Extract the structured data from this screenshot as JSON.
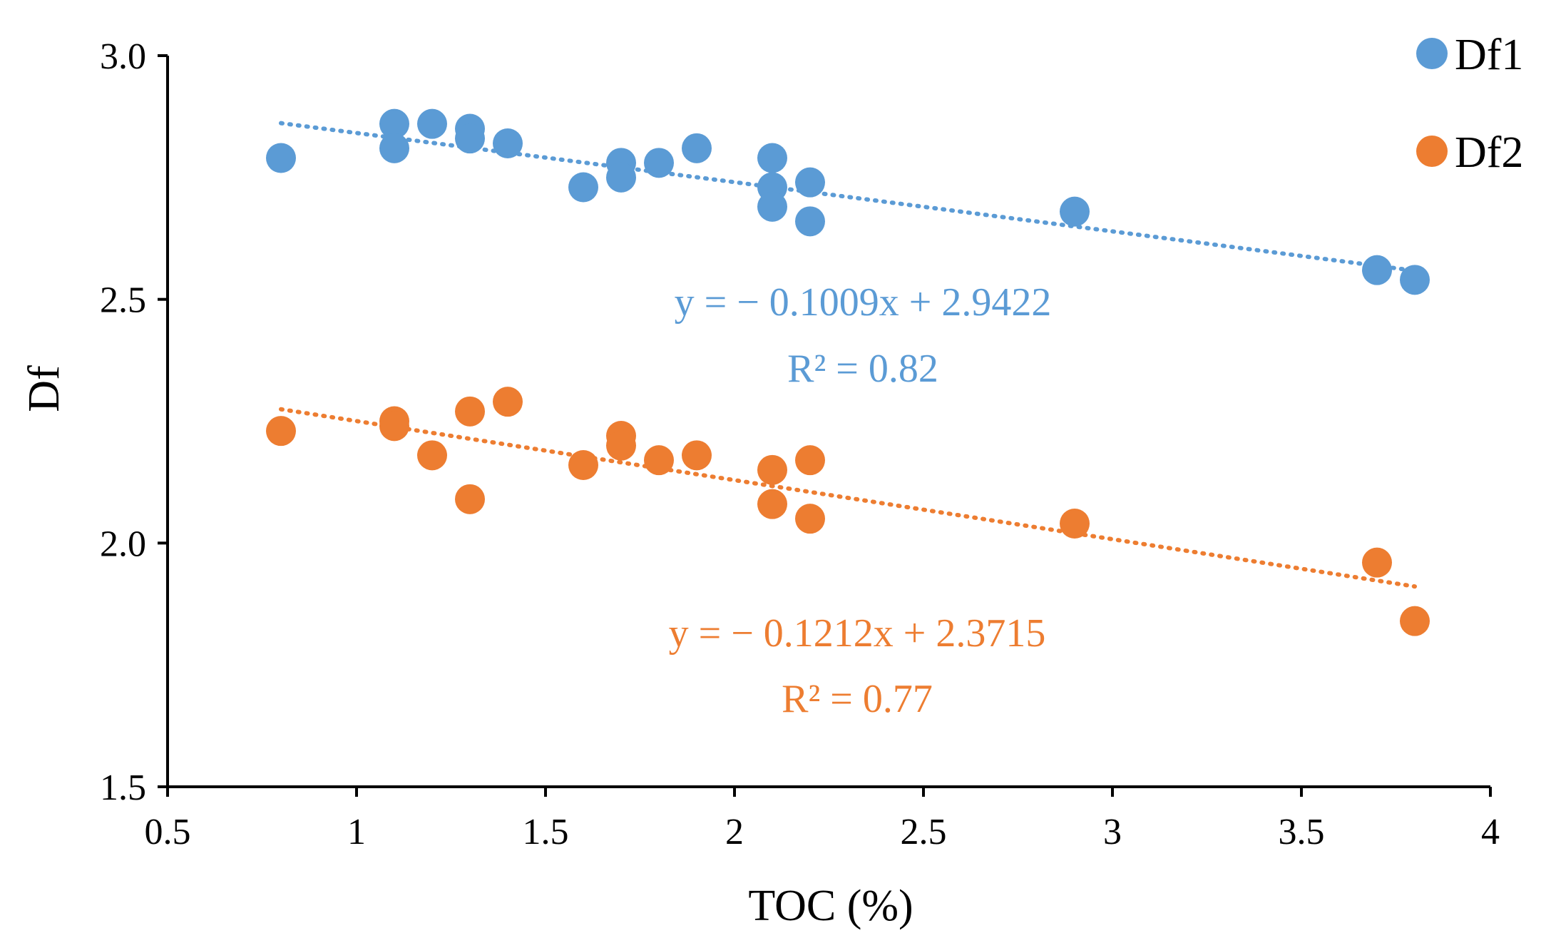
{
  "chart_data": {
    "type": "scatter",
    "title": "",
    "xlabel": "TOC (%)",
    "ylabel": "Df",
    "xlim": [
      0.5,
      4
    ],
    "ylim": [
      1.5,
      3.0
    ],
    "x_ticks": [
      "0.5",
      "1",
      "1.5",
      "2",
      "2.5",
      "3",
      "3.5",
      "4"
    ],
    "y_ticks": [
      "1.5",
      "2.0",
      "2.5",
      "3.0"
    ],
    "grid": false,
    "legend_position": "top-right",
    "series": [
      {
        "name": "Df1",
        "color": "#5B9BD5",
        "points": [
          {
            "x": 0.8,
            "y": 2.79
          },
          {
            "x": 1.1,
            "y": 2.86
          },
          {
            "x": 1.1,
            "y": 2.81
          },
          {
            "x": 1.2,
            "y": 2.86
          },
          {
            "x": 1.3,
            "y": 2.85
          },
          {
            "x": 1.3,
            "y": 2.83
          },
          {
            "x": 1.4,
            "y": 2.82
          },
          {
            "x": 1.6,
            "y": 2.73
          },
          {
            "x": 1.7,
            "y": 2.78
          },
          {
            "x": 1.7,
            "y": 2.75
          },
          {
            "x": 1.8,
            "y": 2.78
          },
          {
            "x": 1.9,
            "y": 2.81
          },
          {
            "x": 2.1,
            "y": 2.79
          },
          {
            "x": 2.1,
            "y": 2.73
          },
          {
            "x": 2.1,
            "y": 2.69
          },
          {
            "x": 2.2,
            "y": 2.74
          },
          {
            "x": 2.2,
            "y": 2.66
          },
          {
            "x": 2.9,
            "y": 2.68
          },
          {
            "x": 3.7,
            "y": 2.56
          },
          {
            "x": 3.8,
            "y": 2.54
          }
        ],
        "trendline": {
          "slope": -0.1009,
          "intercept": 2.9422,
          "x_range": [
            0.8,
            3.8
          ]
        },
        "equation": "y = − 0.1009x + 2.9422",
        "r_squared": "R² = 0.82"
      },
      {
        "name": "Df2",
        "color": "#ED7D31",
        "points": [
          {
            "x": 0.8,
            "y": 2.23
          },
          {
            "x": 1.1,
            "y": 2.25
          },
          {
            "x": 1.1,
            "y": 2.24
          },
          {
            "x": 1.2,
            "y": 2.18
          },
          {
            "x": 1.3,
            "y": 2.27
          },
          {
            "x": 1.3,
            "y": 2.09
          },
          {
            "x": 1.4,
            "y": 2.29
          },
          {
            "x": 1.6,
            "y": 2.16
          },
          {
            "x": 1.7,
            "y": 2.22
          },
          {
            "x": 1.7,
            "y": 2.2
          },
          {
            "x": 1.8,
            "y": 2.17
          },
          {
            "x": 1.9,
            "y": 2.18
          },
          {
            "x": 2.1,
            "y": 2.15
          },
          {
            "x": 2.1,
            "y": 2.08
          },
          {
            "x": 2.2,
            "y": 2.17
          },
          {
            "x": 2.2,
            "y": 2.05
          },
          {
            "x": 2.9,
            "y": 2.04
          },
          {
            "x": 3.7,
            "y": 1.96
          },
          {
            "x": 3.8,
            "y": 1.84
          }
        ],
        "trendline": {
          "slope": -0.1212,
          "intercept": 2.3715,
          "x_range": [
            0.8,
            3.8
          ]
        },
        "equation": "y = − 0.1212x + 2.3715",
        "r_squared": "R² = 0.77"
      }
    ]
  }
}
